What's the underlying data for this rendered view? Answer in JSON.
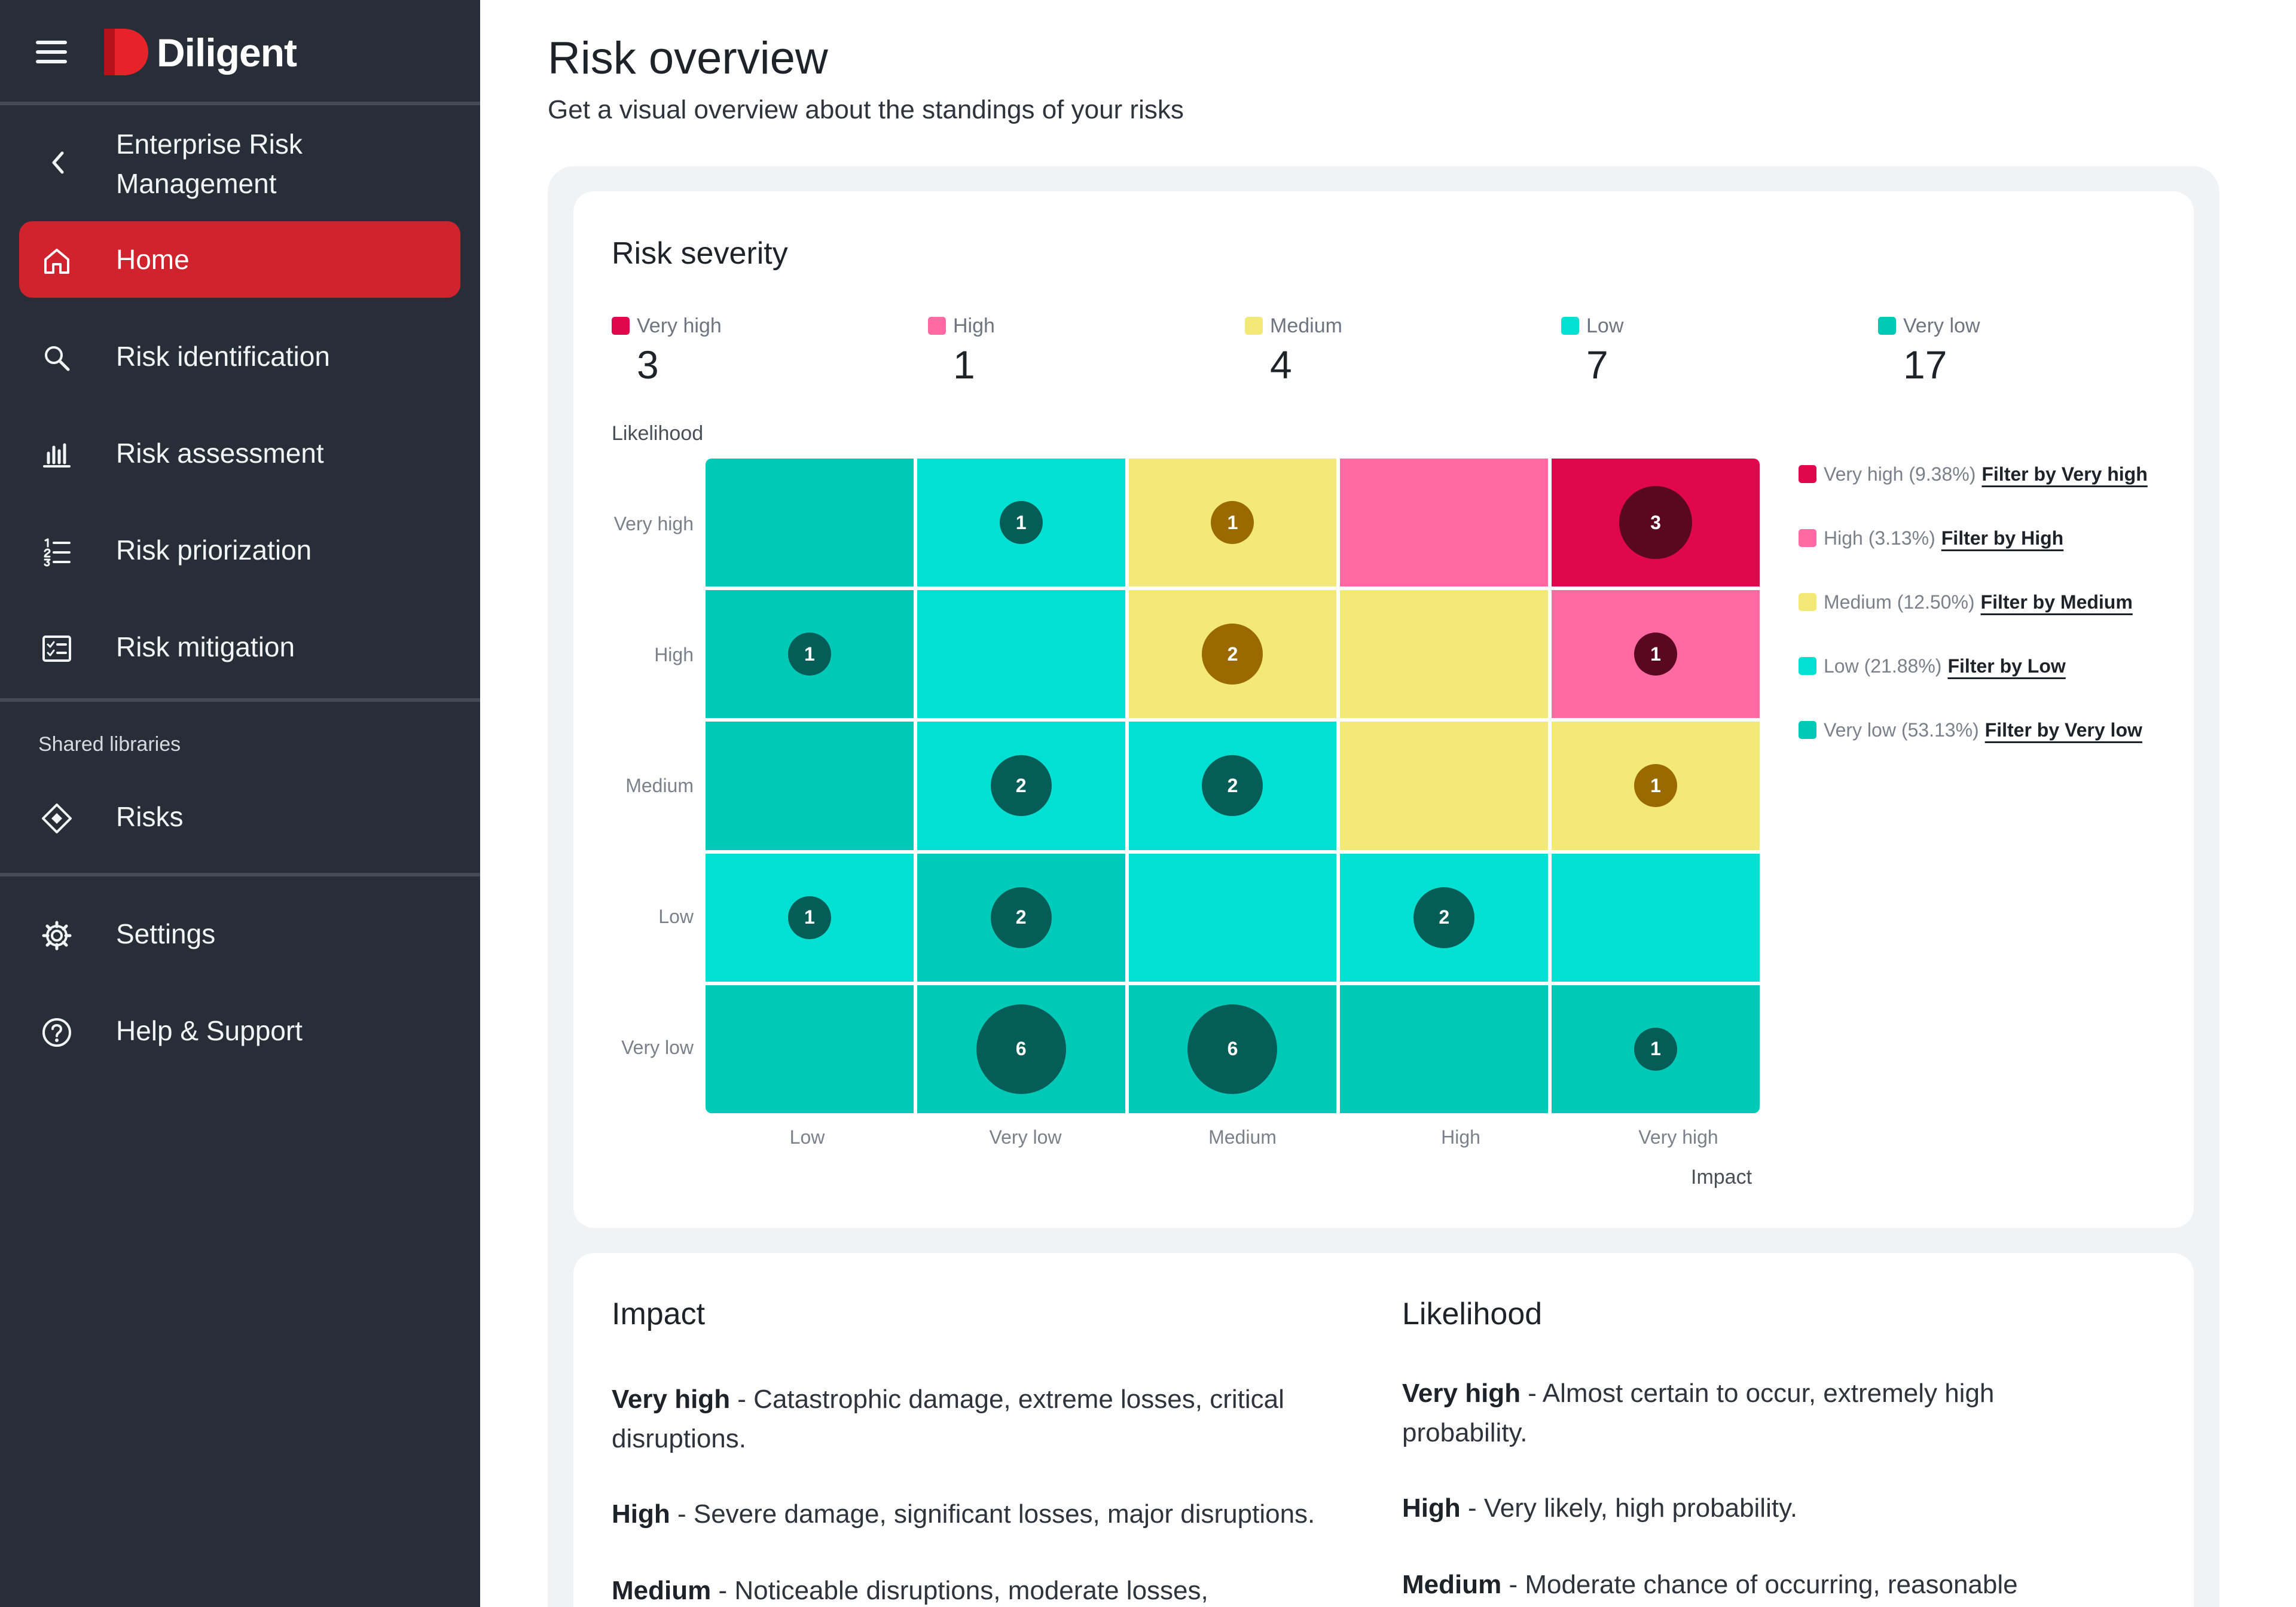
{
  "sidebar": {
    "logo_text": "Diligent",
    "back_title": "Enterprise Risk Management",
    "nav": [
      {
        "label": "Home",
        "icon": "home-icon",
        "active": true
      },
      {
        "label": "Risk identification",
        "icon": "search-icon",
        "active": false
      },
      {
        "label": "Risk assessment",
        "icon": "bar-chart-icon",
        "active": false
      },
      {
        "label": "Risk priorization",
        "icon": "numbered-list-icon",
        "active": false
      },
      {
        "label": "Risk mitigation",
        "icon": "checklist-icon",
        "active": false
      }
    ],
    "section_label": "Shared libraries",
    "library_items": [
      {
        "label": "Risks",
        "icon": "diamond-icon"
      }
    ],
    "bottom_items": [
      {
        "label": "Settings",
        "icon": "gear-icon"
      },
      {
        "label": "Help & Support",
        "icon": "help-icon"
      }
    ]
  },
  "page": {
    "title": "Risk overview",
    "subtitle": "Get a visual overview about the standings of your risks"
  },
  "colors": {
    "very_high": "#e0074f",
    "high": "#ff6aa3",
    "medium": "#f2e977",
    "low": "#02e0d4",
    "very_low": "#00c9b7",
    "low_dark_cell": "#00cbbb",
    "brand_red": "#d0232d",
    "sidebar_bg": "#282e37"
  },
  "severity": {
    "title": "Risk severity",
    "summary": [
      {
        "name": "Very high",
        "count": "3",
        "color": "#e0074f"
      },
      {
        "name": "High",
        "count": "1",
        "color": "#ff6aa3"
      },
      {
        "name": "Medium",
        "count": "4",
        "color": "#f2e977"
      },
      {
        "name": "Low",
        "count": "7",
        "color": "#02e0d4"
      },
      {
        "name": "Very low",
        "count": "17",
        "color": "#00c9b7"
      }
    ],
    "y_axis_title": "Likelihood",
    "x_axis_title": "Impact",
    "legend": [
      {
        "text": "Very high (9.38%)",
        "link": "Filter by Very high",
        "color": "#e0074f"
      },
      {
        "text": "High (3.13%)",
        "link": "Filter by High",
        "color": "#ff6aa3"
      },
      {
        "text": "Medium (12.50%)",
        "link": "Filter by Medium",
        "color": "#f2e977"
      },
      {
        "text": "Low (21.88%)",
        "link": "Filter by Low",
        "color": "#02e0d4"
      },
      {
        "text": "Very low (53.13%)",
        "link": "Filter by Very low",
        "color": "#00c9b7"
      }
    ]
  },
  "chart_data": {
    "type": "heatmap",
    "title": "Risk severity",
    "xlabel": "Impact",
    "ylabel": "Likelihood",
    "x_categories": [
      "Low",
      "Very low",
      "Medium",
      "High",
      "Very high"
    ],
    "y_categories": [
      "Very high",
      "High",
      "Medium",
      "Low",
      "Very low"
    ],
    "cell_levels": [
      [
        "very_low",
        "low",
        "medium",
        "high",
        "very_high"
      ],
      [
        "very_low",
        "low",
        "medium",
        "medium",
        "high"
      ],
      [
        "very_low",
        "low",
        "low",
        "medium",
        "medium"
      ],
      [
        "low",
        "very_low",
        "low",
        "low",
        "low"
      ],
      [
        "very_low",
        "very_low",
        "very_low",
        "very_low",
        "very_low"
      ]
    ],
    "counts": [
      [
        0,
        1,
        1,
        0,
        3
      ],
      [
        1,
        0,
        2,
        0,
        1
      ],
      [
        0,
        2,
        2,
        0,
        1
      ],
      [
        1,
        2,
        0,
        2,
        0
      ],
      [
        0,
        6,
        6,
        0,
        1
      ]
    ]
  },
  "descriptions": {
    "impact": {
      "title": "Impact",
      "items": [
        {
          "level": "Very high",
          "text": " - Catastrophic damage, extreme losses, critical disruptions."
        },
        {
          "level": "High",
          "text": " - Severe damage, significant losses, major disruptions."
        },
        {
          "level": "Medium",
          "text": " - Noticeable disruptions, moderate losses,"
        }
      ]
    },
    "likelihood": {
      "title": "Likelihood",
      "items": [
        {
          "level": "Very high",
          "text": " - Almost certain to occur, extremely high probability."
        },
        {
          "level": "High",
          "text": " - Very likely, high probability."
        },
        {
          "level": "Medium",
          "text": " - Moderate chance of occurring, reasonable"
        }
      ]
    }
  }
}
